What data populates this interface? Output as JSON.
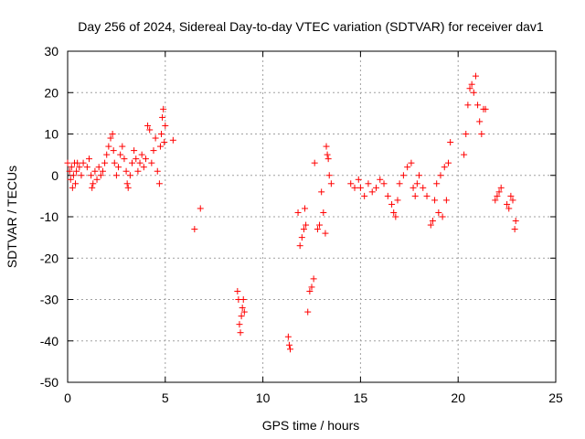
{
  "chart_data": {
    "type": "scatter",
    "title": "Day 256 of 2024, Sidereal Day-to-day VTEC variation (SDTVAR) for receiver dav1",
    "xlabel": "GPS time / hours",
    "ylabel": "SDTVAR / TECUs",
    "xlim": [
      0,
      25
    ],
    "ylim": [
      -50,
      30
    ],
    "xticks": [
      0,
      5,
      10,
      15,
      20,
      25
    ],
    "yticks": [
      -50,
      -40,
      -30,
      -20,
      -10,
      0,
      10,
      20,
      30
    ],
    "grid": true,
    "marker": "+",
    "color": "#ff0000",
    "series": [
      {
        "name": "SDTVAR",
        "points": [
          [
            0.0,
            3
          ],
          [
            0.1,
            1
          ],
          [
            0.15,
            -1
          ],
          [
            0.2,
            2
          ],
          [
            0.25,
            -3
          ],
          [
            0.3,
            0
          ],
          [
            0.35,
            3
          ],
          [
            0.4,
            -2
          ],
          [
            0.45,
            1
          ],
          [
            0.5,
            3
          ],
          [
            0.6,
            2
          ],
          [
            0.7,
            0
          ],
          [
            0.8,
            3
          ],
          [
            1.0,
            2
          ],
          [
            1.1,
            4
          ],
          [
            1.2,
            0
          ],
          [
            1.25,
            -3
          ],
          [
            1.3,
            -2
          ],
          [
            1.4,
            1
          ],
          [
            1.5,
            -1
          ],
          [
            1.6,
            2
          ],
          [
            1.7,
            0
          ],
          [
            1.8,
            1
          ],
          [
            1.9,
            3
          ],
          [
            2.0,
            5
          ],
          [
            2.1,
            7
          ],
          [
            2.2,
            9
          ],
          [
            2.3,
            10
          ],
          [
            2.35,
            6
          ],
          [
            2.4,
            3
          ],
          [
            2.5,
            0
          ],
          [
            2.6,
            2
          ],
          [
            2.7,
            5
          ],
          [
            2.8,
            7
          ],
          [
            2.9,
            4
          ],
          [
            3.0,
            1
          ],
          [
            3.05,
            -2
          ],
          [
            3.1,
            -3
          ],
          [
            3.2,
            0
          ],
          [
            3.3,
            3
          ],
          [
            3.4,
            6
          ],
          [
            3.5,
            4
          ],
          [
            3.6,
            1
          ],
          [
            3.7,
            3
          ],
          [
            3.8,
            5
          ],
          [
            3.9,
            2
          ],
          [
            4.0,
            4
          ],
          [
            4.1,
            12
          ],
          [
            4.2,
            11
          ],
          [
            4.3,
            3
          ],
          [
            4.4,
            6
          ],
          [
            4.5,
            9
          ],
          [
            4.6,
            1
          ],
          [
            4.7,
            -2
          ],
          [
            4.75,
            7
          ],
          [
            4.8,
            10
          ],
          [
            4.85,
            14
          ],
          [
            4.9,
            16
          ],
          [
            4.95,
            8
          ],
          [
            5.0,
            12
          ],
          [
            5.4,
            8.5
          ],
          [
            6.5,
            -13
          ],
          [
            6.8,
            -8
          ],
          [
            8.7,
            -28
          ],
          [
            8.75,
            -30
          ],
          [
            8.8,
            -36
          ],
          [
            8.85,
            -38
          ],
          [
            8.9,
            -34
          ],
          [
            8.95,
            -32
          ],
          [
            9.0,
            -30
          ],
          [
            9.05,
            -33
          ],
          [
            11.3,
            -39
          ],
          [
            11.35,
            -41
          ],
          [
            11.4,
            -42
          ],
          [
            11.8,
            -9
          ],
          [
            11.9,
            -17
          ],
          [
            12.0,
            -15
          ],
          [
            12.1,
            -13
          ],
          [
            12.15,
            -8
          ],
          [
            12.2,
            -12
          ],
          [
            12.3,
            -33
          ],
          [
            12.4,
            -28
          ],
          [
            12.5,
            -27
          ],
          [
            12.6,
            -25
          ],
          [
            12.65,
            3
          ],
          [
            12.8,
            -13
          ],
          [
            12.9,
            -12
          ],
          [
            13.0,
            -4
          ],
          [
            13.1,
            -9
          ],
          [
            13.2,
            -14
          ],
          [
            13.25,
            7
          ],
          [
            13.3,
            5
          ],
          [
            13.35,
            4
          ],
          [
            13.4,
            0
          ],
          [
            13.5,
            -2
          ],
          [
            14.5,
            -2
          ],
          [
            14.7,
            -3
          ],
          [
            14.9,
            -1
          ],
          [
            15.0,
            -3
          ],
          [
            15.2,
            -5
          ],
          [
            15.4,
            -2
          ],
          [
            15.6,
            -4
          ],
          [
            15.8,
            -3
          ],
          [
            16.0,
            -1
          ],
          [
            16.2,
            -2
          ],
          [
            16.4,
            -5
          ],
          [
            16.6,
            -7
          ],
          [
            16.7,
            -9
          ],
          [
            16.8,
            -10
          ],
          [
            16.9,
            -6
          ],
          [
            17.0,
            -2
          ],
          [
            17.2,
            0
          ],
          [
            17.4,
            2
          ],
          [
            17.6,
            3
          ],
          [
            17.7,
            -3
          ],
          [
            17.8,
            -5
          ],
          [
            17.9,
            -2
          ],
          [
            18.0,
            0
          ],
          [
            18.2,
            -3
          ],
          [
            18.4,
            -5
          ],
          [
            18.6,
            -12
          ],
          [
            18.7,
            -11
          ],
          [
            18.8,
            -6
          ],
          [
            18.9,
            -2
          ],
          [
            19.0,
            -9
          ],
          [
            19.1,
            0
          ],
          [
            19.2,
            -10
          ],
          [
            19.3,
            2
          ],
          [
            19.4,
            -6
          ],
          [
            19.5,
            3
          ],
          [
            19.6,
            8
          ],
          [
            20.3,
            5
          ],
          [
            20.4,
            10
          ],
          [
            20.5,
            17
          ],
          [
            20.6,
            21
          ],
          [
            20.7,
            22
          ],
          [
            20.8,
            20
          ],
          [
            20.9,
            24
          ],
          [
            21.0,
            17
          ],
          [
            21.1,
            13
          ],
          [
            21.2,
            10
          ],
          [
            21.3,
            16
          ],
          [
            21.4,
            16
          ],
          [
            21.9,
            -6
          ],
          [
            22.0,
            -5
          ],
          [
            22.1,
            -4
          ],
          [
            22.2,
            -3
          ],
          [
            22.5,
            -7
          ],
          [
            22.6,
            -8
          ],
          [
            22.7,
            -5
          ],
          [
            22.8,
            -6
          ],
          [
            22.9,
            -13
          ],
          [
            22.95,
            -11
          ]
        ]
      }
    ]
  }
}
